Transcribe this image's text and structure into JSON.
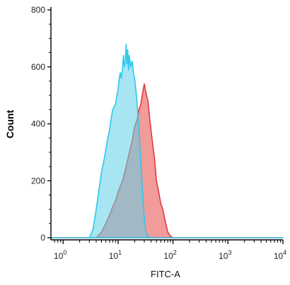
{
  "chart_data": {
    "type": "area",
    "title": "",
    "xlabel": "FITC-A",
    "ylabel": "Count",
    "xscale": "log",
    "xlim": [
      0.6,
      10000
    ],
    "ylim": [
      0,
      810
    ],
    "grid": false,
    "x_ticks": [
      {
        "base": "10",
        "exp": "0",
        "value": 1
      },
      {
        "base": "10",
        "exp": "1",
        "value": 10
      },
      {
        "base": "10",
        "exp": "2",
        "value": 100
      },
      {
        "base": "10",
        "exp": "3",
        "value": 1000
      },
      {
        "base": "10",
        "exp": "4",
        "value": 10000
      }
    ],
    "y_ticks": [
      {
        "label": "0",
        "value": 0
      },
      {
        "label": "200",
        "value": 200
      },
      {
        "label": "400",
        "value": 400
      },
      {
        "label": "600",
        "value": 600
      },
      {
        "label": "800",
        "value": 800
      }
    ],
    "series": [
      {
        "fill": "#f08a8a",
        "stroke": "#e23a3a",
        "x": [
          0.6,
          4.0,
          5.0,
          6.0,
          7.0,
          8.0,
          9.0,
          10.0,
          12.0,
          14.0,
          16.0,
          18.0,
          20.0,
          22.0,
          24.0,
          26.0,
          28.0,
          30.0,
          32.0,
          35.0,
          38.0,
          42.0,
          46.0,
          50.0,
          55.0,
          60.0,
          65.0,
          70.0,
          80.0,
          90.0,
          100.0,
          10000
        ],
        "y": [
          0,
          0,
          20,
          50,
          80,
          110,
          130,
          160,
          200,
          250,
          300,
          340,
          390,
          410,
          450,
          470,
          510,
          540,
          510,
          480,
          410,
          340,
          280,
          200,
          160,
          120,
          100,
          70,
          20,
          5,
          0,
          0
        ]
      },
      {
        "fill": "#5fd0e8",
        "stroke": "#2fc7ea",
        "x": [
          0.6,
          3.0,
          3.5,
          4.0,
          4.5,
          5.0,
          5.5,
          6.0,
          6.5,
          7.0,
          7.5,
          8.0,
          8.5,
          9.0,
          9.5,
          10.0,
          10.5,
          11.0,
          11.5,
          12.0,
          12.5,
          13.0,
          13.5,
          14.0,
          14.5,
          15.0,
          15.5,
          16.0,
          17.0,
          18.0,
          19.0,
          20.0,
          21.0,
          22.0,
          23.0,
          24.0,
          25.0,
          26.0,
          28.0,
          30.0,
          32.0,
          35.0,
          40.0,
          10000
        ],
        "y": [
          0,
          0,
          30,
          100,
          170,
          230,
          270,
          310,
          350,
          380,
          420,
          450,
          460,
          470,
          500,
          520,
          560,
          580,
          560,
          590,
          640,
          600,
          620,
          680,
          610,
          660,
          590,
          640,
          600,
          620,
          580,
          560,
          520,
          480,
          430,
          380,
          320,
          260,
          150,
          70,
          20,
          5,
          0,
          0
        ]
      }
    ]
  }
}
